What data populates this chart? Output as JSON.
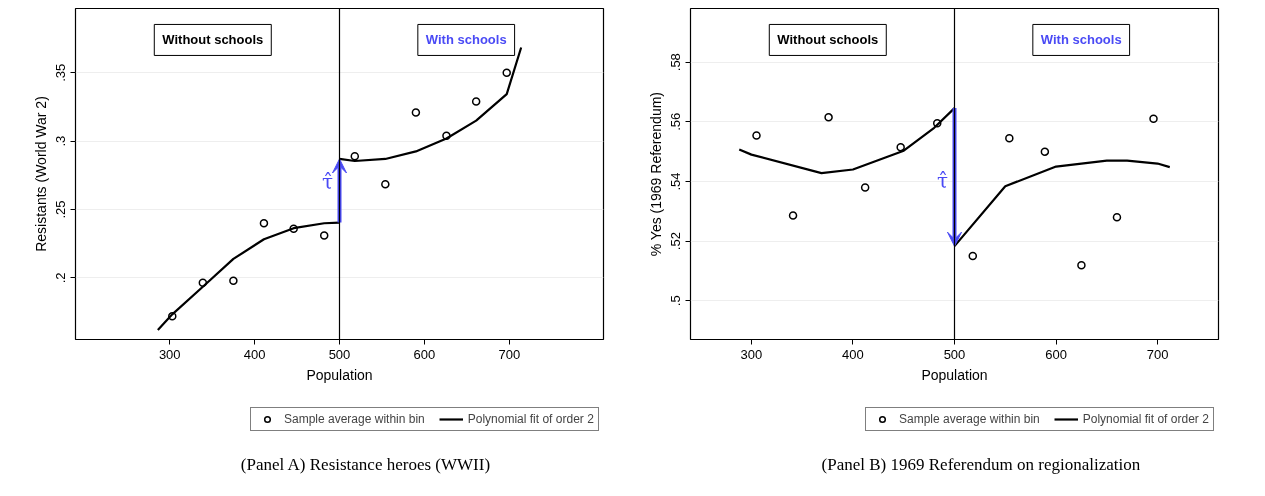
{
  "chart_data": [
    {
      "type": "scatter",
      "title": "(Panel A) Resistance heroes (WWII)",
      "xlabel": "Population",
      "ylabel": "Resistants (World War 2)",
      "xlim": [
        189,
        811
      ],
      "ylim": [
        0.155,
        0.397
      ],
      "xticks": [
        300,
        400,
        500,
        600,
        700
      ],
      "yticks": [
        {
          "value": 0.2,
          "label": ".2"
        },
        {
          "value": 0.25,
          "label": ".25"
        },
        {
          "value": 0.3,
          "label": ".3"
        },
        {
          "value": 0.35,
          "label": ".35"
        }
      ],
      "grid": "y",
      "legend": "bottom",
      "ref_lines": [
        {
          "axis": "x",
          "value": 500,
          "color": "#000000"
        }
      ],
      "annotations": [
        "Without schools",
        "With schools",
        {
          "text": "τ̂",
          "x": 500,
          "y": 0.27
        }
      ],
      "series": [
        {
          "name": "Sample average within bin",
          "marker": "circle",
          "color": "#000000",
          "x": [
            303,
            339,
            375,
            411,
            446,
            482,
            518,
            554,
            590,
            626,
            661,
            697
          ],
          "values": [
            0.172,
            0.1965,
            0.198,
            0.24,
            0.236,
            0.231,
            0.289,
            0.2685,
            0.321,
            0.304,
            0.329,
            0.35
          ]
        },
        {
          "name": "Polynomial fit of order 2",
          "type": "line",
          "color": "#000000",
          "x": [
            286,
            303,
            339,
            375,
            411,
            446,
            482,
            500
          ],
          "values": [
            0.162,
            0.1734,
            0.1936,
            0.2139,
            0.2283,
            0.2364,
            0.24,
            0.2405
          ]
        },
        {
          "type": "line",
          "color": "#000000",
          "x": [
            500,
            518,
            554,
            590,
            626,
            661,
            697,
            714
          ],
          "values": [
            0.287,
            0.2855,
            0.287,
            0.2925,
            0.302,
            0.315,
            0.3344,
            0.3685
          ]
        }
      ]
    },
    {
      "type": "scatter",
      "title": "(Panel B) 1969 Referendum on regionalization",
      "xlabel": "Population",
      "ylabel": "% Yes (1969 Referendum)",
      "xlim": [
        240,
        760
      ],
      "ylim": [
        0.487,
        0.598
      ],
      "xticks": [
        300,
        400,
        500,
        600,
        700
      ],
      "yticks": [
        {
          "value": 0.5,
          "label": ".5"
        },
        {
          "value": 0.52,
          "label": ".52"
        },
        {
          "value": 0.54,
          "label": ".54"
        },
        {
          "value": 0.56,
          "label": ".56"
        },
        {
          "value": 0.58,
          "label": ".58"
        }
      ],
      "grid": "y",
      "legend": "bottom",
      "ref_lines": [
        {
          "axis": "x",
          "value": 500,
          "color": "#000000"
        }
      ],
      "annotations": [
        "Without schools",
        "With schools",
        {
          "text": "τ̂",
          "x": 500,
          "y": 0.54
        }
      ],
      "series": [
        {
          "name": "Sample average within bin",
          "marker": "circle",
          "color": "#000000",
          "x": [
            305,
            341,
            376,
            412,
            447,
            483,
            518,
            554,
            589,
            625,
            660,
            696
          ],
          "values": [
            0.5554,
            0.5286,
            0.5615,
            0.538,
            0.5515,
            0.5595,
            0.515,
            0.5545,
            0.55,
            0.5119,
            0.528,
            0.561
          ]
        },
        {
          "name": "Polynomial fit of order 2",
          "type": "line",
          "color": "#000000",
          "x": [
            288,
            300,
            369,
            400,
            450,
            480,
            500
          ],
          "values": [
            0.5507,
            0.549,
            0.5428,
            0.544,
            0.5503,
            0.558,
            0.5646
          ]
        },
        {
          "type": "line",
          "color": "#000000",
          "x": [
            500,
            550,
            600,
            650,
            670,
            700,
            712
          ],
          "values": [
            0.5183,
            0.5384,
            0.545,
            0.547,
            0.547,
            0.546,
            0.5448
          ]
        }
      ]
    }
  ]
}
